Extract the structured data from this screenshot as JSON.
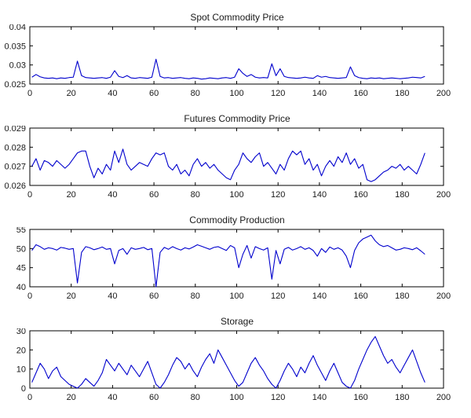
{
  "figure": {
    "background": "#ffffff",
    "line_color": "#0000cd",
    "axis_color": "#000000",
    "tick_label_color": "#1a1a1a"
  },
  "chart_data": [
    {
      "type": "line",
      "title": "Spot Commodity Price",
      "xlabel": "",
      "ylabel": "",
      "xlim": [
        0,
        200
      ],
      "ylim": [
        0.025,
        0.04
      ],
      "xticks": [
        0,
        20,
        40,
        60,
        80,
        100,
        120,
        140,
        160,
        180,
        200
      ],
      "yticks": [
        0.025,
        0.03,
        0.035,
        0.04
      ],
      "grid": false,
      "legend": null,
      "x_start": 1,
      "x_step": 2,
      "values": [
        0.0268,
        0.0275,
        0.0269,
        0.0266,
        0.0265,
        0.0266,
        0.0264,
        0.0266,
        0.0265,
        0.0267,
        0.0268,
        0.031,
        0.0272,
        0.0267,
        0.0266,
        0.0265,
        0.0266,
        0.0267,
        0.0265,
        0.0268,
        0.0285,
        0.027,
        0.0267,
        0.0272,
        0.0266,
        0.0265,
        0.0267,
        0.0266,
        0.0265,
        0.0268,
        0.0315,
        0.027,
        0.0266,
        0.0267,
        0.0265,
        0.0266,
        0.0267,
        0.0265,
        0.0264,
        0.0266,
        0.0265,
        0.0263,
        0.0264,
        0.0266,
        0.0265,
        0.0264,
        0.0266,
        0.0267,
        0.0265,
        0.0268,
        0.029,
        0.0278,
        0.027,
        0.0275,
        0.0268,
        0.0266,
        0.0267,
        0.0266,
        0.0303,
        0.0272,
        0.029,
        0.027,
        0.0267,
        0.0266,
        0.0265,
        0.0266,
        0.0268,
        0.0266,
        0.0265,
        0.0272,
        0.0268,
        0.027,
        0.0267,
        0.0266,
        0.0265,
        0.0266,
        0.0267,
        0.0295,
        0.0272,
        0.0267,
        0.0265,
        0.0264,
        0.0266,
        0.0265,
        0.0266,
        0.0264,
        0.0265,
        0.0266,
        0.0265,
        0.0264,
        0.0265,
        0.0266,
        0.0268,
        0.0267,
        0.0266,
        0.027
      ]
    },
    {
      "type": "line",
      "title": "Futures Commodity Price",
      "xlabel": "",
      "ylabel": "",
      "xlim": [
        0,
        200
      ],
      "ylim": [
        0.026,
        0.029
      ],
      "xticks": [
        0,
        20,
        40,
        60,
        80,
        100,
        120,
        140,
        160,
        180,
        200
      ],
      "yticks": [
        0.026,
        0.027,
        0.028,
        0.029
      ],
      "grid": false,
      "legend": null,
      "x_start": 1,
      "x_step": 2,
      "values": [
        0.027,
        0.0274,
        0.0268,
        0.0273,
        0.0272,
        0.027,
        0.0273,
        0.0271,
        0.0269,
        0.0271,
        0.0274,
        0.0277,
        0.0278,
        0.0278,
        0.027,
        0.0264,
        0.0269,
        0.0266,
        0.0271,
        0.0268,
        0.0278,
        0.0272,
        0.0279,
        0.0271,
        0.0268,
        0.027,
        0.0272,
        0.0271,
        0.027,
        0.0274,
        0.0277,
        0.0276,
        0.0277,
        0.027,
        0.0268,
        0.0271,
        0.0266,
        0.0268,
        0.0265,
        0.0271,
        0.0274,
        0.027,
        0.0272,
        0.0269,
        0.0271,
        0.0268,
        0.0266,
        0.0264,
        0.0263,
        0.0268,
        0.0271,
        0.0277,
        0.0274,
        0.0272,
        0.0275,
        0.0277,
        0.027,
        0.0272,
        0.0269,
        0.0266,
        0.0271,
        0.0268,
        0.0274,
        0.0278,
        0.0276,
        0.0278,
        0.0271,
        0.0274,
        0.0268,
        0.0271,
        0.0265,
        0.027,
        0.0273,
        0.027,
        0.0275,
        0.0272,
        0.0277,
        0.0271,
        0.0274,
        0.0269,
        0.0271,
        0.0263,
        0.0262,
        0.0263,
        0.0265,
        0.0267,
        0.0268,
        0.027,
        0.0269,
        0.0271,
        0.0268,
        0.027,
        0.0268,
        0.0266,
        0.0271,
        0.0277
      ]
    },
    {
      "type": "line",
      "title": "Commodity Production",
      "xlabel": "",
      "ylabel": "",
      "xlim": [
        0,
        200
      ],
      "ylim": [
        40,
        55
      ],
      "xticks": [
        0,
        20,
        40,
        60,
        80,
        100,
        120,
        140,
        160,
        180,
        200
      ],
      "yticks": [
        40,
        45,
        50,
        55
      ],
      "grid": false,
      "legend": null,
      "x_start": 1,
      "x_step": 2,
      "values": [
        49.5,
        51.0,
        50.5,
        49.8,
        50.2,
        50.0,
        49.6,
        50.3,
        50.1,
        49.8,
        50.0,
        41.0,
        49.0,
        50.5,
        50.2,
        49.7,
        50.0,
        50.4,
        49.8,
        50.0,
        46.0,
        49.5,
        50.0,
        48.5,
        50.2,
        49.8,
        50.0,
        50.3,
        49.7,
        50.0,
        40.0,
        49.0,
        50.3,
        49.8,
        50.5,
        50.0,
        49.6,
        50.2,
        49.9,
        50.4,
        51.0,
        50.6,
        50.2,
        49.8,
        50.3,
        50.5,
        50.0,
        49.5,
        50.8,
        50.2,
        45.0,
        48.5,
        50.8,
        47.5,
        50.5,
        50.0,
        49.6,
        50.2,
        42.0,
        49.5,
        46.0,
        49.8,
        50.3,
        49.6,
        50.0,
        50.5,
        49.8,
        50.2,
        49.5,
        48.0,
        50.0,
        49.0,
        50.4,
        49.8,
        50.2,
        49.6,
        48.0,
        45.0,
        49.5,
        51.5,
        52.5,
        53.0,
        53.5,
        52.0,
        51.0,
        50.5,
        50.8,
        50.2,
        49.6,
        49.8,
        50.2,
        50.0,
        49.7,
        50.2,
        49.4,
        48.5
      ]
    },
    {
      "type": "line",
      "title": "Storage",
      "xlabel": "",
      "ylabel": "",
      "xlim": [
        0,
        200
      ],
      "ylim": [
        0,
        30
      ],
      "xticks": [
        0,
        20,
        40,
        60,
        80,
        100,
        120,
        140,
        160,
        180,
        200
      ],
      "yticks": [
        0,
        10,
        20,
        30
      ],
      "grid": false,
      "legend": null,
      "x_start": 1,
      "x_step": 2,
      "values": [
        3,
        8,
        13,
        10,
        5,
        9,
        11,
        6,
        4,
        2,
        1,
        0,
        2,
        5,
        3,
        1,
        4,
        8,
        15,
        12,
        9,
        13,
        10,
        7,
        12,
        9,
        6,
        10,
        14,
        8,
        2,
        0,
        3,
        7,
        12,
        16,
        14,
        10,
        13,
        9,
        6,
        11,
        15,
        18,
        13,
        20,
        16,
        12,
        8,
        4,
        1,
        3,
        8,
        13,
        16,
        12,
        9,
        5,
        2,
        0,
        4,
        9,
        13,
        10,
        6,
        11,
        8,
        13,
        17,
        12,
        8,
        4,
        9,
        13,
        8,
        3,
        1,
        0,
        4,
        10,
        15,
        20,
        24,
        27,
        22,
        17,
        13,
        15,
        11,
        8,
        12,
        16,
        20,
        14,
        8,
        3
      ]
    }
  ]
}
